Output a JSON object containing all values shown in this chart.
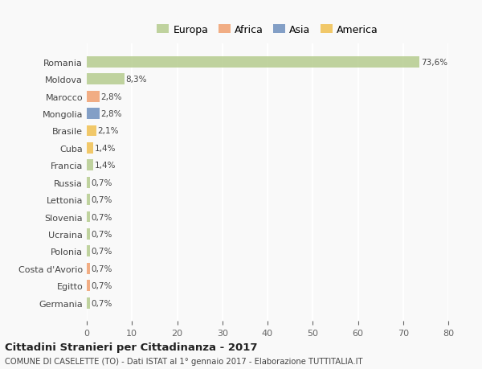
{
  "countries": [
    "Romania",
    "Moldova",
    "Marocco",
    "Mongolia",
    "Brasile",
    "Cuba",
    "Francia",
    "Russia",
    "Lettonia",
    "Slovenia",
    "Ucraina",
    "Polonia",
    "Costa d'Avorio",
    "Egitto",
    "Germania"
  ],
  "values": [
    73.6,
    8.3,
    2.8,
    2.8,
    2.1,
    1.4,
    1.4,
    0.7,
    0.7,
    0.7,
    0.7,
    0.7,
    0.7,
    0.7,
    0.7
  ],
  "labels": [
    "73,6%",
    "8,3%",
    "2,8%",
    "2,8%",
    "2,1%",
    "1,4%",
    "1,4%",
    "0,7%",
    "0,7%",
    "0,7%",
    "0,7%",
    "0,7%",
    "0,7%",
    "0,7%",
    "0,7%"
  ],
  "continents": [
    "Europa",
    "Europa",
    "Africa",
    "Asia",
    "America",
    "America",
    "Europa",
    "Europa",
    "Europa",
    "Europa",
    "Europa",
    "Europa",
    "Africa",
    "Africa",
    "Europa"
  ],
  "colors": {
    "Europa": "#b5cc8e",
    "Africa": "#f0a070",
    "Asia": "#6e8fbe",
    "America": "#f0c050"
  },
  "legend_order": [
    "Europa",
    "Africa",
    "Asia",
    "America"
  ],
  "xlim": [
    0,
    80
  ],
  "xticks": [
    0,
    10,
    20,
    30,
    40,
    50,
    60,
    70,
    80
  ],
  "title": "Cittadini Stranieri per Cittadinanza - 2017",
  "subtitle": "COMUNE DI CASELETTE (TO) - Dati ISTAT al 1° gennaio 2017 - Elaborazione TUTTITALIA.IT",
  "bg_color": "#f9f9f9",
  "grid_color": "#ffffff",
  "bar_height": 0.65
}
